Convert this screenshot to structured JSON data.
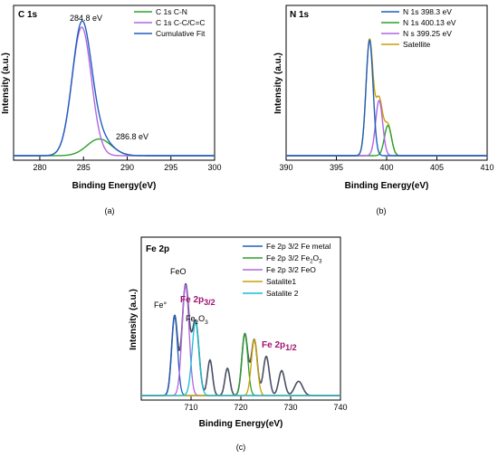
{
  "panels": [
    {
      "id": "a",
      "caption": "(a)",
      "title": "C 1s",
      "xlabel": "Binding Energy(eV)",
      "ylabel": "Intensity (a.u.)",
      "xlim": [
        277,
        300
      ],
      "xticks": [
        "280",
        "285",
        "290",
        "295",
        "300"
      ],
      "xtick_values": [
        280,
        285,
        290,
        295,
        300
      ],
      "legend": [
        {
          "label": "C 1s  C-N",
          "color": "#2ca02c"
        },
        {
          "label": "C 1s  C-C/C=C",
          "color": "#b066e0"
        },
        {
          "label": "Cumulative Fit",
          "color": "#1f5fbf"
        }
      ],
      "annotations": [
        {
          "text": "284.8 eV",
          "x": 284.8
        },
        {
          "text": "286.8 eV",
          "x": 287.3
        }
      ]
    },
    {
      "id": "b",
      "caption": "(b)",
      "title": "N 1s",
      "xlabel": "Binding Energy(eV)",
      "ylabel": "Intensity (a.u.)",
      "xlim": [
        390,
        410
      ],
      "xticks": [
        "390",
        "395",
        "400",
        "405",
        "410"
      ],
      "xtick_values": [
        390,
        395,
        400,
        405,
        410
      ],
      "legend": [
        {
          "label": "N 1s  398.3 eV",
          "color": "#1f5fbf"
        },
        {
          "label": "N 1s  400.13 eV",
          "color": "#2ca02c"
        },
        {
          "label": "N s   399.25  eV",
          "color": "#b066e0"
        },
        {
          "label": "Satellite",
          "color": "#c9a000"
        }
      ]
    },
    {
      "id": "c",
      "caption": "(c)",
      "title": "Fe 2p",
      "xlabel": "Binding Energy(eV)",
      "ylabel": "Intensity (a.u.)",
      "xlim": [
        700,
        740
      ],
      "xticks": [
        "710",
        "720",
        "730",
        "740"
      ],
      "xtick_values": [
        710,
        720,
        730,
        740
      ],
      "legend": [
        {
          "label": "Fe 2p 3/2 Fe metal",
          "sub": "",
          "color": "#1f5fbf"
        },
        {
          "label": "Fe 2p 3/2 Fe",
          "sub": "2",
          "tail": "O",
          "sub2": "3",
          "color": "#2ca02c"
        },
        {
          "label": "Fe 2p 3/2 FeO",
          "sub": "",
          "color": "#b066e0"
        },
        {
          "label": "Satalite1",
          "sub": "",
          "color": "#c9a000"
        },
        {
          "label": "Satalite 2",
          "sub": "",
          "color": "#17becf"
        }
      ],
      "annotations": {
        "fe0": "Fe°",
        "feo": "FeO",
        "fe2o3_a": "Fe",
        "fe2o3_sub1": "2",
        "fe2o3_b": "O",
        "fe2o3_sub2": "3",
        "fe2p32_main": "Fe 2p",
        "fe2p32_sub": "3/2",
        "fe2p12_main": "Fe 2p",
        "fe2p12_sub": "1/2"
      }
    }
  ],
  "chart_data": [
    {
      "type": "line",
      "title": "C 1s",
      "xlabel": "Binding Energy(eV)",
      "ylabel": "Intensity (a.u.)",
      "xlim": [
        277,
        300
      ],
      "series": [
        {
          "name": "C 1s  C-N",
          "color": "#2ca02c",
          "peaks": [
            {
              "center": 286.8,
              "height": 0.13,
              "width": 1.4
            }
          ]
        },
        {
          "name": "C 1s  C-C/C=C",
          "color": "#b066e0",
          "peaks": [
            {
              "center": 284.8,
              "height": 1.0,
              "width": 1.1
            }
          ]
        },
        {
          "name": "Cumulative Fit",
          "color": "#1f5fbf",
          "peaks": [
            {
              "center": 284.8,
              "height": 1.0,
              "width": 1.1
            },
            {
              "center": 286.8,
              "height": 0.13,
              "width": 1.4
            }
          ]
        }
      ]
    },
    {
      "type": "line",
      "title": "N 1s",
      "xlabel": "Binding Energy(eV)",
      "ylabel": "Intensity (a.u.)",
      "xlim": [
        390,
        410
      ],
      "series": [
        {
          "name": "N 1s  398.3 eV",
          "color": "#1f5fbf",
          "peaks": [
            {
              "center": 398.3,
              "height": 0.88,
              "width": 0.35
            }
          ]
        },
        {
          "name": "N 1s  400.13 eV",
          "color": "#2ca02c",
          "peaks": [
            {
              "center": 400.13,
              "height": 0.23,
              "width": 0.35
            }
          ]
        },
        {
          "name": "N s   399.25  eV",
          "color": "#b066e0",
          "peaks": [
            {
              "center": 399.25,
              "height": 0.42,
              "width": 0.35
            }
          ]
        },
        {
          "name": "Satellite",
          "color": "#c9a000",
          "peaks": [
            {
              "center": 398.3,
              "height": 0.88,
              "width": 0.35
            },
            {
              "center": 399.25,
              "height": 0.42,
              "width": 0.35
            },
            {
              "center": 400.13,
              "height": 0.23,
              "width": 0.35
            }
          ]
        }
      ]
    },
    {
      "type": "line",
      "title": "Fe 2p",
      "xlabel": "Binding Energy(eV)",
      "ylabel": "Intensity (a.u.)",
      "xlim": [
        700,
        740
      ],
      "series": [
        {
          "name": "Fe 2p 3/2 Fe metal",
          "color": "#1f5fbf",
          "peaks": [
            {
              "center": 706.7,
              "height": 0.67,
              "width": 0.6
            }
          ]
        },
        {
          "name": "Fe 2p 3/2 Fe2O3",
          "color": "#2ca02c",
          "peaks": [
            {
              "center": 720.8,
              "height": 0.52,
              "width": 0.6
            }
          ]
        },
        {
          "name": "Fe 2p 3/2 FeO",
          "color": "#b066e0",
          "peaks": [
            {
              "center": 708.9,
              "height": 0.93,
              "width": 0.7
            }
          ]
        },
        {
          "name": "Satalite1",
          "color": "#c9a000",
          "peaks": [
            {
              "center": 722.7,
              "height": 0.47,
              "width": 0.6
            }
          ]
        },
        {
          "name": "Satalite 2",
          "color": "#17becf",
          "peaks": [
            {
              "center": 710.9,
              "height": 0.62,
              "width": 0.7
            }
          ]
        }
      ],
      "cumulative_peaks": [
        {
          "center": 706.7,
          "height": 0.67,
          "width": 0.6
        },
        {
          "center": 708.9,
          "height": 0.93,
          "width": 0.7
        },
        {
          "center": 710.9,
          "height": 0.62,
          "width": 0.7
        },
        {
          "center": 713.8,
          "height": 0.3,
          "width": 0.5
        },
        {
          "center": 717.3,
          "height": 0.23,
          "width": 0.5
        },
        {
          "center": 720.8,
          "height": 0.52,
          "width": 0.6
        },
        {
          "center": 722.7,
          "height": 0.47,
          "width": 0.6
        },
        {
          "center": 725.1,
          "height": 0.33,
          "width": 0.6
        },
        {
          "center": 728.2,
          "height": 0.21,
          "width": 0.6
        },
        {
          "center": 731.6,
          "height": 0.12,
          "width": 0.8
        }
      ]
    }
  ]
}
